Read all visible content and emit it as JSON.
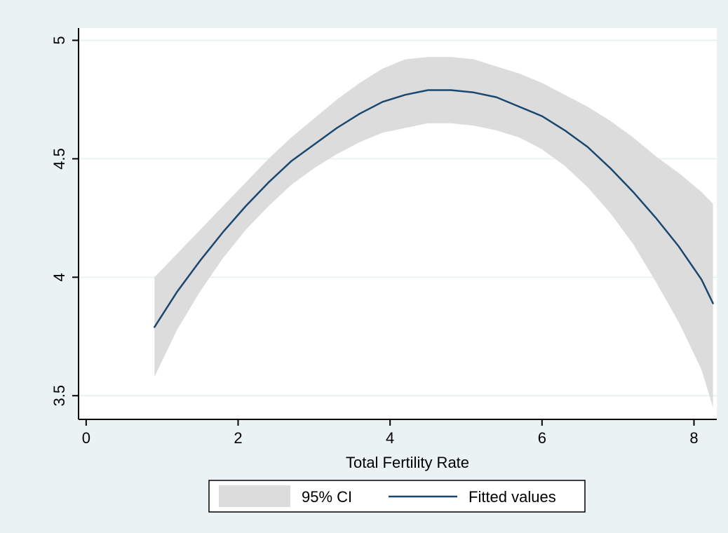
{
  "chart_data": {
    "type": "line",
    "title": "",
    "xlabel": "Total Fertility Rate",
    "ylabel": "",
    "xlim": [
      -0.1,
      8.3
    ],
    "ylim": [
      3.4,
      5.04
    ],
    "xticks": [
      0,
      2,
      4,
      6,
      8
    ],
    "xtick_labels": [
      "0",
      "2",
      "4",
      "6",
      "8"
    ],
    "yticks": [
      3.5,
      4,
      4.5,
      5
    ],
    "ytick_labels": [
      "3.5",
      "4",
      "4.5",
      "5"
    ],
    "grid": "horizontal",
    "legend_position": "bottom",
    "legend": [
      {
        "label": "95% CI",
        "kind": "band",
        "color": "#dcdcdc"
      },
      {
        "label": "Fitted values",
        "kind": "line",
        "color": "#1a476f"
      }
    ],
    "fitted": {
      "name": "Fitted values",
      "color": "#1a476f",
      "x": [
        0.9,
        1.2,
        1.5,
        1.8,
        2.1,
        2.4,
        2.7,
        3.0,
        3.3,
        3.6,
        3.9,
        4.2,
        4.5,
        4.8,
        5.1,
        5.4,
        5.7,
        6.0,
        6.3,
        6.6,
        6.9,
        7.2,
        7.5,
        7.8,
        8.1,
        8.25
      ],
      "y": [
        3.79,
        3.94,
        4.07,
        4.19,
        4.3,
        4.4,
        4.49,
        4.56,
        4.63,
        4.69,
        4.74,
        4.77,
        4.79,
        4.79,
        4.78,
        4.76,
        4.72,
        4.68,
        4.62,
        4.55,
        4.46,
        4.36,
        4.25,
        4.13,
        3.99,
        3.89
      ]
    },
    "ci": {
      "name": "95% CI",
      "color": "#dcdcdc",
      "x": [
        0.9,
        1.2,
        1.5,
        1.8,
        2.1,
        2.4,
        2.7,
        3.0,
        3.3,
        3.6,
        3.9,
        4.2,
        4.5,
        4.8,
        5.1,
        5.4,
        5.7,
        6.0,
        6.3,
        6.6,
        6.9,
        7.2,
        7.5,
        7.8,
        8.1,
        8.25
      ],
      "upper": [
        4.0,
        4.1,
        4.2,
        4.3,
        4.4,
        4.5,
        4.59,
        4.67,
        4.75,
        4.82,
        4.88,
        4.92,
        4.93,
        4.93,
        4.92,
        4.89,
        4.86,
        4.82,
        4.77,
        4.72,
        4.66,
        4.59,
        4.51,
        4.44,
        4.36,
        4.31
      ],
      "lower": [
        3.58,
        3.78,
        3.94,
        4.08,
        4.2,
        4.3,
        4.39,
        4.46,
        4.52,
        4.57,
        4.61,
        4.63,
        4.65,
        4.65,
        4.64,
        4.62,
        4.59,
        4.54,
        4.47,
        4.38,
        4.27,
        4.14,
        3.98,
        3.81,
        3.61,
        3.45
      ]
    },
    "colors": {
      "outer_background": "#eaf2f3",
      "plot_background": "#ffffff",
      "gridline": "#eaf2f3",
      "axis": "#000000"
    }
  }
}
